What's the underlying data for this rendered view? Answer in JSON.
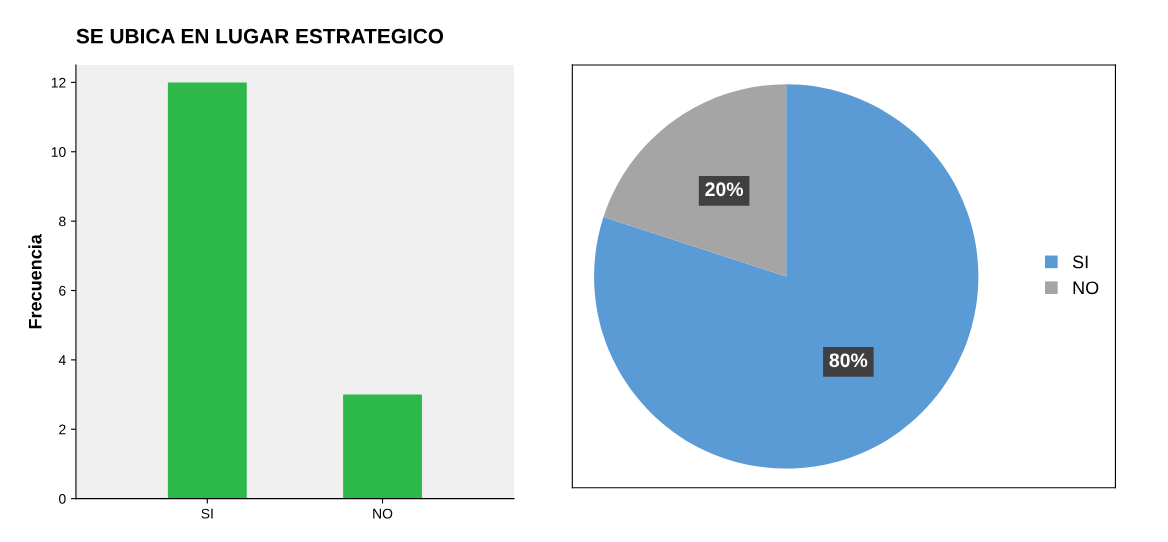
{
  "chart_data": [
    {
      "type": "bar",
      "title": "SE UBICA EN LUGAR ESTRATEGICO",
      "ylabel": "Frecuencia",
      "categories": [
        "SI",
        "NO"
      ],
      "values": [
        12,
        3
      ],
      "color": "#2db84a",
      "ylim": [
        0,
        12.5
      ],
      "yticks": [
        0,
        2,
        4,
        6,
        8,
        10,
        12
      ],
      "grid": false
    },
    {
      "type": "pie",
      "categories": [
        "SI",
        "NO"
      ],
      "values": [
        80,
        20
      ],
      "colors": [
        "#5b9bd5",
        "#a5a5a5"
      ],
      "value_labels": [
        "80%",
        "20%"
      ],
      "legend": "right"
    }
  ]
}
